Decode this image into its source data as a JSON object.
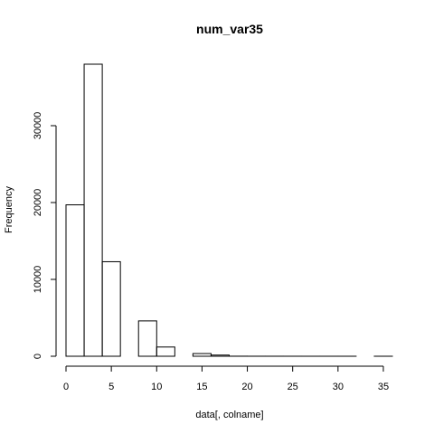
{
  "chart_data": {
    "type": "bar",
    "title": "num_var35",
    "xlabel": "data[, colname]",
    "ylabel": "Frequency",
    "bins": [
      {
        "from": 0,
        "to": 2,
        "count": 19700
      },
      {
        "from": 2,
        "to": 4,
        "count": 38000
      },
      {
        "from": 4,
        "to": 6,
        "count": 12300
      },
      {
        "from": 6,
        "to": 8,
        "count": 0
      },
      {
        "from": 8,
        "to": 10,
        "count": 4600
      },
      {
        "from": 10,
        "to": 12,
        "count": 1200
      },
      {
        "from": 12,
        "to": 14,
        "count": 0
      },
      {
        "from": 14,
        "to": 16,
        "count": 350
      },
      {
        "from": 16,
        "to": 18,
        "count": 150
      },
      {
        "from": 18,
        "to": 20,
        "count": 8
      },
      {
        "from": 20,
        "to": 22,
        "count": 4
      },
      {
        "from": 22,
        "to": 24,
        "count": 3
      },
      {
        "from": 24,
        "to": 26,
        "count": 2
      },
      {
        "from": 26,
        "to": 28,
        "count": 1
      },
      {
        "from": 28,
        "to": 30,
        "count": 1
      },
      {
        "from": 30,
        "to": 32,
        "count": 1
      },
      {
        "from": 32,
        "to": 34,
        "count": 0
      },
      {
        "from": 34,
        "to": 36,
        "count": 1
      }
    ],
    "xlim": [
      0,
      36
    ],
    "ylim": [
      0,
      38000
    ],
    "xticks": [
      0,
      5,
      10,
      15,
      20,
      25,
      30,
      35
    ],
    "yticks": [
      0,
      10000,
      20000,
      30000
    ],
    "grid": false,
    "legend": "none"
  }
}
